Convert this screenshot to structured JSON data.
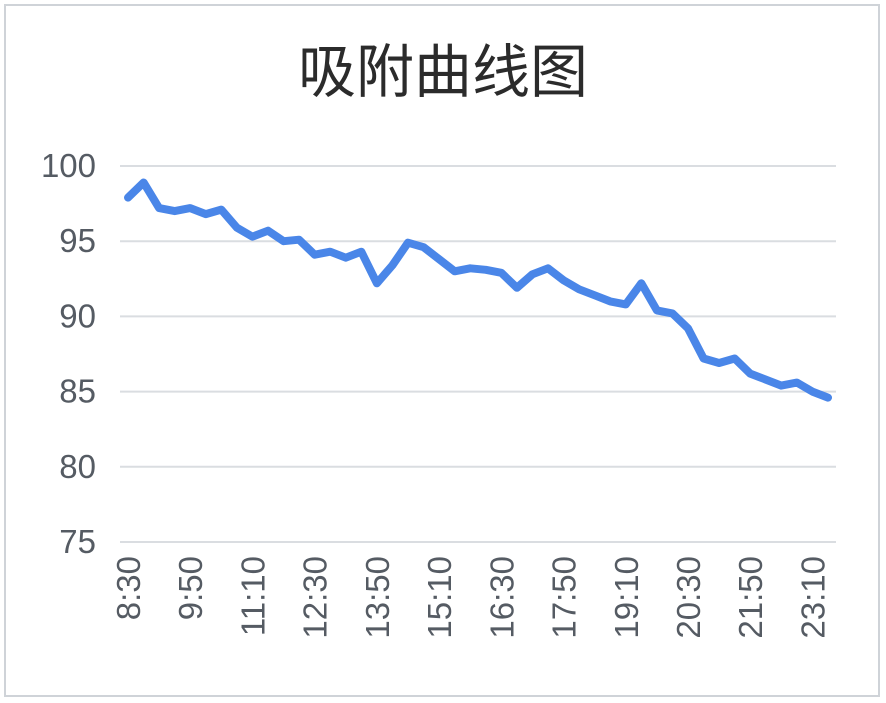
{
  "chart_data": {
    "type": "line",
    "title": "吸附曲线图",
    "xlabel": "",
    "ylabel": "",
    "ylim": [
      75,
      100
    ],
    "yticks": [
      75,
      80,
      85,
      90,
      95,
      100
    ],
    "grid": true,
    "legend": "none",
    "x": [
      "8:30",
      "8:50",
      "9:10",
      "9:30",
      "9:50",
      "10:10",
      "10:30",
      "10:50",
      "11:10",
      "11:30",
      "11:50",
      "12:10",
      "12:30",
      "12:50",
      "13:10",
      "13:30",
      "13:50",
      "14:10",
      "14:30",
      "14:50",
      "15:10",
      "15:30",
      "15:50",
      "16:10",
      "16:30",
      "16:50",
      "17:10",
      "17:30",
      "17:50",
      "18:10",
      "18:30",
      "18:50",
      "19:10",
      "19:30",
      "19:50",
      "20:10",
      "20:30",
      "20:50",
      "21:10",
      "21:30",
      "21:50",
      "22:10",
      "22:30",
      "22:50",
      "23:10",
      "23:30"
    ],
    "xtick_labels": [
      "8:30",
      "9:50",
      "11:10",
      "12:30",
      "13:50",
      "15:10",
      "16:30",
      "17:50",
      "19:10",
      "20:30",
      "21:50",
      "23:10"
    ],
    "series": [
      {
        "color": "#4a86e8",
        "values": [
          97.9,
          98.9,
          97.2,
          97.0,
          97.2,
          96.8,
          97.1,
          95.9,
          95.3,
          95.7,
          95.0,
          95.1,
          94.1,
          94.3,
          93.9,
          94.3,
          92.2,
          93.4,
          94.9,
          94.6,
          93.8,
          93.0,
          93.2,
          93.1,
          92.9,
          91.9,
          92.8,
          93.2,
          92.4,
          91.8,
          91.4,
          91.0,
          90.8,
          92.2,
          90.4,
          90.2,
          89.2,
          87.2,
          86.9,
          87.2,
          86.2,
          85.8,
          85.4,
          85.6,
          85.0,
          84.6
        ]
      }
    ]
  }
}
